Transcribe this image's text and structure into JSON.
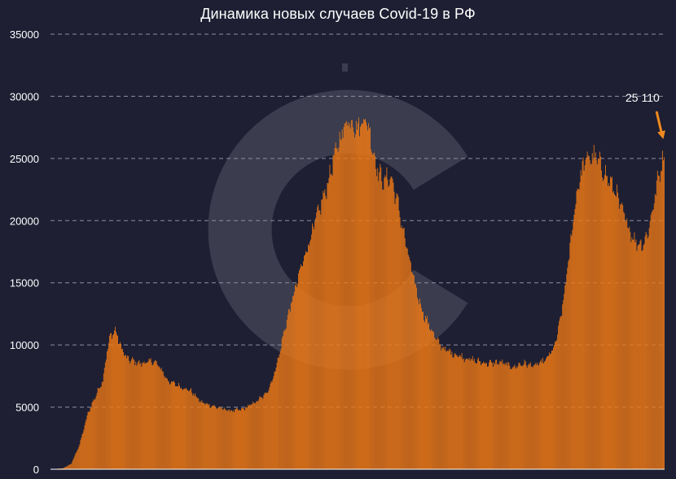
{
  "chart_data": {
    "type": "bar",
    "title": "Динамика новых случаев Covid-19 в РФ",
    "xlabel": "",
    "ylabel": "",
    "ylim": [
      0,
      35000
    ],
    "yticks": [
      0,
      5000,
      10000,
      15000,
      20000,
      25000,
      30000,
      35000
    ],
    "ytick_labels": [
      "0",
      "5000",
      "10000",
      "15000",
      "20000",
      "25000",
      "30000",
      "35000"
    ],
    "grid": true,
    "legend": "none",
    "annotation": {
      "text": "25 110",
      "target": "last-bar"
    },
    "colors": {
      "background": "#1e1f33",
      "bar": "#f07a16",
      "bar_edge": "#7a3306",
      "grid": "#8e8ea0",
      "axis": "#ffffff",
      "text": "#ffffff",
      "arrow": "#f08a1e"
    },
    "anchors": [
      [
        0,
        0
      ],
      [
        15,
        80
      ],
      [
        25,
        450
      ],
      [
        35,
        2000
      ],
      [
        45,
        4500
      ],
      [
        55,
        6000
      ],
      [
        63,
        7200
      ],
      [
        68,
        9500
      ],
      [
        72,
        10700
      ],
      [
        78,
        11200
      ],
      [
        84,
        10000
      ],
      [
        92,
        8900
      ],
      [
        108,
        8500
      ],
      [
        125,
        8700
      ],
      [
        133,
        8100
      ],
      [
        142,
        7100
      ],
      [
        155,
        6700
      ],
      [
        170,
        6300
      ],
      [
        182,
        5400
      ],
      [
        200,
        5000
      ],
      [
        218,
        4700
      ],
      [
        232,
        4800
      ],
      [
        248,
        5400
      ],
      [
        260,
        6000
      ],
      [
        268,
        7100
      ],
      [
        276,
        9000
      ],
      [
        284,
        11500
      ],
      [
        294,
        14000
      ],
      [
        304,
        16400
      ],
      [
        314,
        18500
      ],
      [
        324,
        20600
      ],
      [
        334,
        22600
      ],
      [
        342,
        24800
      ],
      [
        350,
        26500
      ],
      [
        358,
        28000
      ],
      [
        364,
        28000
      ],
      [
        372,
        27400
      ],
      [
        380,
        28300
      ],
      [
        386,
        27300
      ],
      [
        394,
        24500
      ],
      [
        402,
        23200
      ],
      [
        412,
        23500
      ],
      [
        420,
        21500
      ],
      [
        428,
        18800
      ],
      [
        436,
        16300
      ],
      [
        444,
        14100
      ],
      [
        452,
        12400
      ],
      [
        460,
        11400
      ],
      [
        468,
        10300
      ],
      [
        478,
        9600
      ],
      [
        488,
        9300
      ],
      [
        500,
        9000
      ],
      [
        515,
        8700
      ],
      [
        530,
        8500
      ],
      [
        545,
        8600
      ],
      [
        560,
        8200
      ],
      [
        572,
        8500
      ],
      [
        586,
        8300
      ],
      [
        600,
        8800
      ],
      [
        610,
        9800
      ],
      [
        616,
        11500
      ],
      [
        622,
        14000
      ],
      [
        628,
        17200
      ],
      [
        634,
        20700
      ],
      [
        640,
        23200
      ],
      [
        646,
        24600
      ],
      [
        652,
        25100
      ],
      [
        660,
        25100
      ],
      [
        668,
        24200
      ],
      [
        676,
        23200
      ],
      [
        684,
        22400
      ],
      [
        692,
        20800
      ],
      [
        700,
        19500
      ],
      [
        708,
        18300
      ],
      [
        716,
        18100
      ],
      [
        722,
        18700
      ],
      [
        728,
        20500
      ],
      [
        734,
        22800
      ],
      [
        740,
        24600
      ],
      [
        743,
        25110
      ]
    ]
  }
}
